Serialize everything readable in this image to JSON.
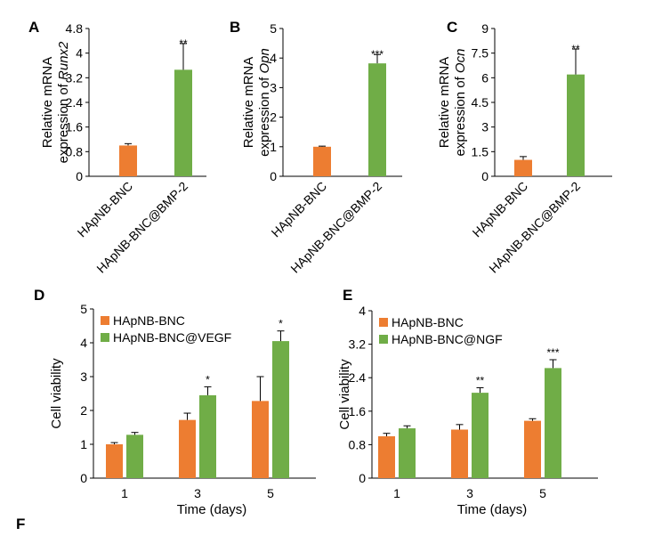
{
  "figure": {
    "panel_f_label": "F",
    "colors": {
      "control": "#ED7D31",
      "treated": "#70AD47",
      "axis": "#000000"
    }
  },
  "chart_data": [
    {
      "id": "A",
      "type": "bar",
      "panel_label": "A",
      "categories": [
        "HApNB-BNC",
        "HApNB-BNC@BMP-2"
      ],
      "values": [
        1.0,
        3.46
      ],
      "errors": [
        0.06,
        0.85
      ],
      "significance": [
        "",
        "**"
      ],
      "ylabel_line1": "Relative mRNA",
      "ylabel_prefix": "expression of ",
      "ylabel_gene": "Runx2",
      "ylim": [
        0,
        4.8
      ],
      "yticks": [
        "0",
        "0.8",
        "1.6",
        "2.4",
        "3.2",
        "4",
        "4.8"
      ]
    },
    {
      "id": "B",
      "type": "bar",
      "panel_label": "B",
      "categories": [
        "HApNB-BNC",
        "HApNB-BNC@BMP-2"
      ],
      "values": [
        1.0,
        3.82
      ],
      "errors": [
        0.02,
        0.3
      ],
      "significance": [
        "",
        "***"
      ],
      "ylabel_line1": "Relative mRNA",
      "ylabel_prefix": "expression of ",
      "ylabel_gene": "Opn",
      "ylim": [
        0,
        5
      ],
      "yticks": [
        "0",
        "1",
        "2",
        "3",
        "4",
        "5"
      ]
    },
    {
      "id": "C",
      "type": "bar",
      "panel_label": "C",
      "categories": [
        "HApNB-BNC",
        "HApNB-BNC@BMP-2"
      ],
      "values": [
        1.0,
        6.2
      ],
      "errors": [
        0.2,
        1.55
      ],
      "significance": [
        "",
        "**"
      ],
      "ylabel_line1": "Relative mRNA",
      "ylabel_prefix": "expression of ",
      "ylabel_gene": "Ocn",
      "ylim": [
        0,
        9
      ],
      "yticks": [
        "0",
        "1.5",
        "3",
        "4.5",
        "6",
        "7.5",
        "9"
      ]
    },
    {
      "id": "D",
      "type": "bar",
      "panel_label": "D",
      "categories": [
        "1",
        "3",
        "5"
      ],
      "series": [
        {
          "name": "HApNB-BNC",
          "values": [
            1.0,
            1.72,
            2.28
          ],
          "errors": [
            0.05,
            0.2,
            0.72
          ],
          "significance": [
            "",
            "",
            ""
          ]
        },
        {
          "name": "HApNB-BNC@VEGF",
          "values": [
            1.28,
            2.45,
            4.05
          ],
          "errors": [
            0.07,
            0.25,
            0.3
          ],
          "significance": [
            "",
            "*",
            "*"
          ]
        }
      ],
      "xlabel": "Time (days)",
      "ylabel": "Cell viability",
      "ylim": [
        0,
        5
      ],
      "yticks": [
        "0",
        "1",
        "2",
        "3",
        "4",
        "5"
      ],
      "legend_position": "top-left"
    },
    {
      "id": "E",
      "type": "bar",
      "panel_label": "E",
      "categories": [
        "1",
        "3",
        "5"
      ],
      "series": [
        {
          "name": "HApNB-BNC",
          "values": [
            1.0,
            1.16,
            1.37
          ],
          "errors": [
            0.07,
            0.12,
            0.05
          ],
          "significance": [
            "",
            "",
            ""
          ]
        },
        {
          "name": "HApNB-BNC@NGF",
          "values": [
            1.19,
            2.04,
            2.63
          ],
          "errors": [
            0.06,
            0.12,
            0.2
          ],
          "significance": [
            "",
            "**",
            "***"
          ]
        }
      ],
      "xlabel": "Time (days)",
      "ylabel": "Cell viability",
      "ylim": [
        0,
        4
      ],
      "yticks": [
        "0",
        "0.8",
        "1.6",
        "2.4",
        "3.2",
        "4"
      ],
      "legend_position": "top-left"
    }
  ]
}
